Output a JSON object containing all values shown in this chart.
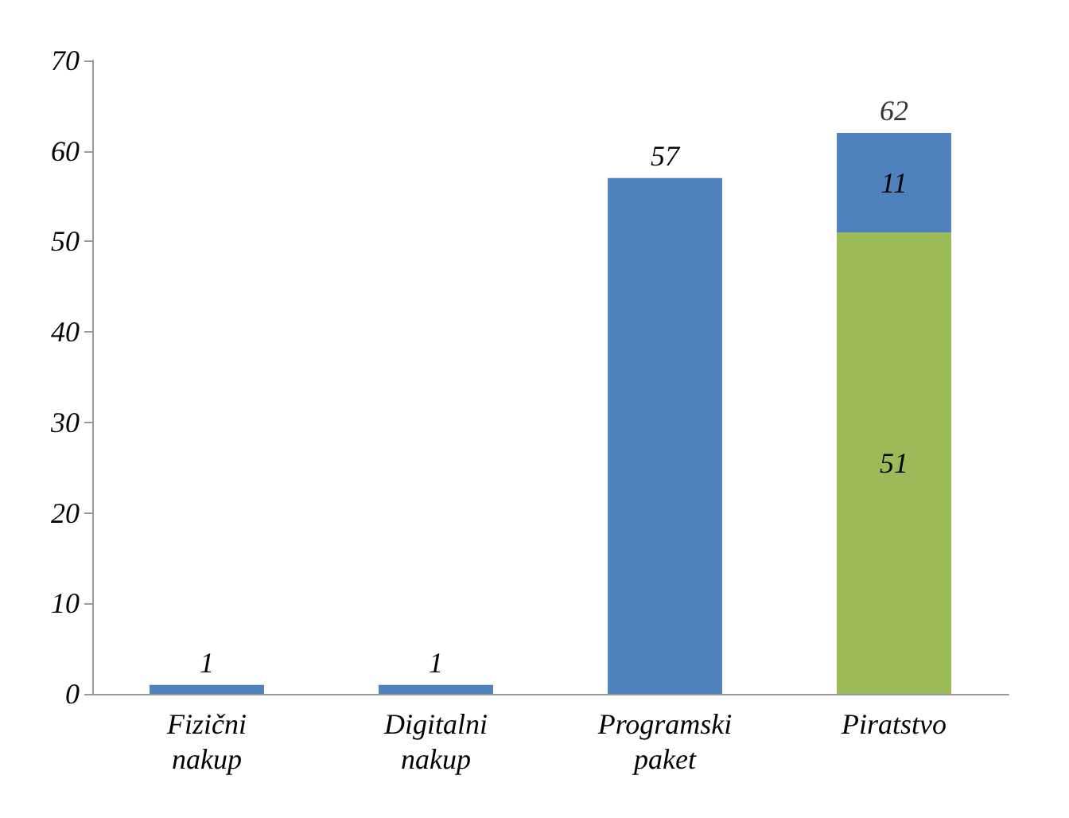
{
  "chart_data": {
    "type": "bar",
    "stacked": true,
    "categories": [
      "Fizični nakup",
      "Digitalni nakup",
      "Programski paket",
      "Piratstvo"
    ],
    "series": [
      {
        "color": "#9bbb59",
        "values": [
          null,
          null,
          null,
          51
        ],
        "value_labels": [
          null,
          null,
          null,
          "51"
        ]
      },
      {
        "color": "#4f81bd",
        "values": [
          1,
          1,
          57,
          11
        ],
        "value_labels": [
          "1",
          "1",
          "57",
          "11"
        ]
      }
    ],
    "totals": [
      null,
      null,
      null,
      "62"
    ],
    "ylim": [
      0,
      70
    ],
    "yticks": [
      0,
      10,
      20,
      30,
      40,
      50,
      60,
      70
    ],
    "grid": false
  }
}
